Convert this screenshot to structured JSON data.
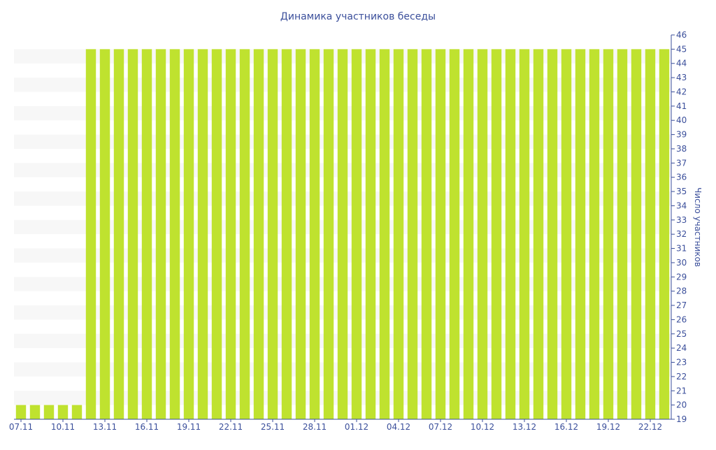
{
  "chart_data": {
    "type": "bar",
    "title": "Динамика участников беседы",
    "xlabel": "",
    "ylabel": "Число участников",
    "ylim": [
      19,
      46
    ],
    "grid": true,
    "y_axis_side": "right",
    "categories": [
      "07.11",
      "08.11",
      "09.11",
      "10.11",
      "11.11",
      "12.11",
      "13.11",
      "14.11",
      "15.11",
      "16.11",
      "17.11",
      "18.11",
      "19.11",
      "20.11",
      "21.11",
      "22.11",
      "23.11",
      "24.11",
      "25.11",
      "26.11",
      "27.11",
      "28.11",
      "29.11",
      "30.11",
      "01.12",
      "02.12",
      "03.12",
      "04.12",
      "05.12",
      "06.12",
      "07.12",
      "08.12",
      "09.12",
      "10.12",
      "11.12",
      "12.12",
      "13.12",
      "14.12",
      "15.12",
      "16.12",
      "17.12",
      "18.12",
      "19.12",
      "20.12",
      "21.12",
      "22.12",
      "23.12"
    ],
    "x_tick_labels": [
      "07.11",
      "10.11",
      "13.11",
      "16.11",
      "19.11",
      "22.11",
      "25.11",
      "28.11",
      "01.12",
      "04.12",
      "07.12",
      "10.12",
      "13.12",
      "16.12",
      "19.12",
      "22.12"
    ],
    "y_ticks": [
      19,
      20,
      21,
      22,
      23,
      24,
      25,
      26,
      27,
      28,
      29,
      30,
      31,
      32,
      33,
      34,
      35,
      36,
      37,
      38,
      39,
      40,
      41,
      42,
      43,
      44,
      45,
      46
    ],
    "series": [
      {
        "values": [
          20,
          20,
          20,
          20,
          20,
          45,
          45,
          45,
          45,
          45,
          45,
          45,
          45,
          45,
          45,
          45,
          45,
          45,
          45,
          45,
          45,
          45,
          45,
          45,
          45,
          45,
          45,
          45,
          45,
          45,
          45,
          45,
          45,
          45,
          45,
          45,
          45,
          45,
          45,
          45,
          45,
          45,
          45,
          45,
          45,
          45,
          45
        ]
      }
    ],
    "colors": {
      "bar": "#bfe22f",
      "text": "#3b4f9b",
      "axis": "#3b4f9b",
      "grid_band": "#f7f7f7"
    }
  }
}
